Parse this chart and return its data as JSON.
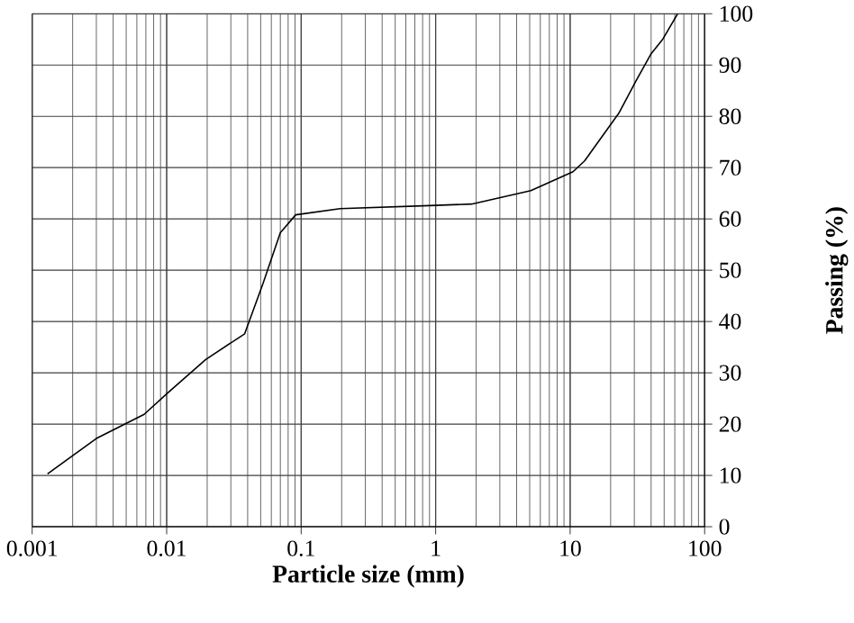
{
  "chart_data": {
    "type": "line",
    "xlabel": "Particle size (mm)",
    "ylabel": "Passing (%)",
    "log": "x",
    "grid": true,
    "marker": "none",
    "line_style": "solid",
    "xlim": [
      0.001,
      100
    ],
    "ylim": [
      0,
      100
    ],
    "xticks": [
      {
        "value": 0.001,
        "label": "0.001"
      },
      {
        "value": 0.01,
        "label": "0.01"
      },
      {
        "value": 0.1,
        "label": "0.1"
      },
      {
        "value": 1,
        "label": "1"
      },
      {
        "value": 10,
        "label": "10"
      },
      {
        "value": 100,
        "label": "100"
      }
    ],
    "yticks": [
      0,
      10,
      20,
      30,
      40,
      50,
      60,
      70,
      80,
      90,
      100
    ],
    "series": [
      {
        "color": "#000000",
        "x": [
          0.0013,
          0.003,
          0.0068,
          0.0101,
          0.0195,
          0.038,
          0.052,
          0.07,
          0.091,
          0.195,
          0.9,
          1.85,
          5.1,
          10.5,
          12.8,
          23,
          31,
          40,
          49,
          63
        ],
        "values": [
          10.3,
          17.2,
          21.9,
          26,
          32.6,
          37.6,
          47.4,
          57.3,
          60.8,
          62,
          62.6,
          62.9,
          65.5,
          69.2,
          71.3,
          80.6,
          87,
          92.2,
          95.1,
          100
        ]
      }
    ]
  }
}
